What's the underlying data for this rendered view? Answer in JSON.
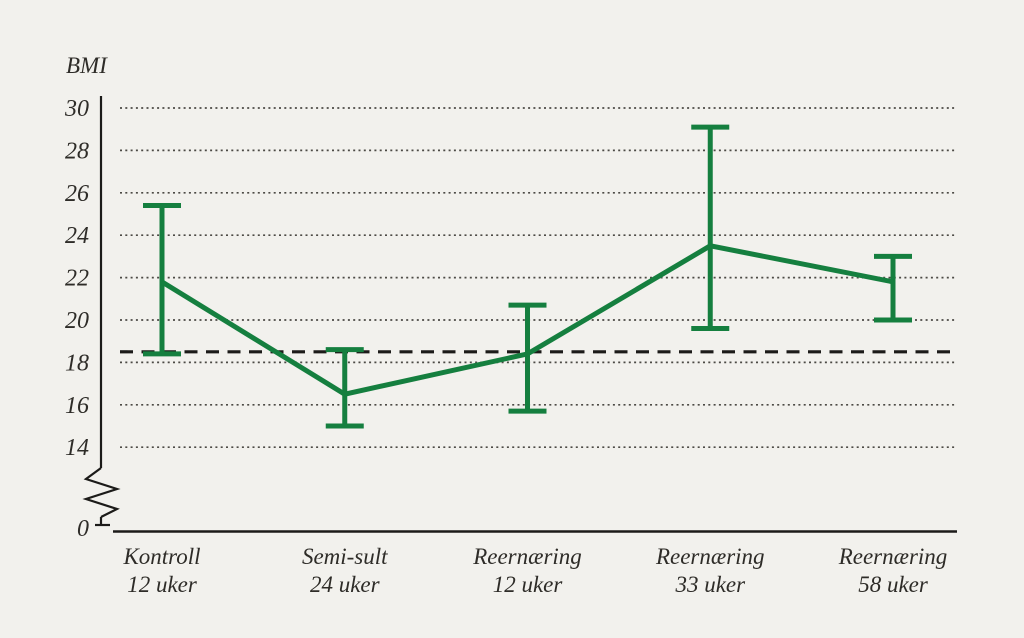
{
  "figure": {
    "background": "#f2f1ed"
  },
  "chart_data": {
    "type": "line",
    "title": "",
    "ylabel": "BMI",
    "xlabel": "",
    "categories": [
      {
        "label": "Kontroll",
        "sublabel": "12 uker"
      },
      {
        "label": "Semi-sult",
        "sublabel": "24 uker"
      },
      {
        "label": "Reernæring",
        "sublabel": "12 uker"
      },
      {
        "label": "Reernæring",
        "sublabel": "33 uker"
      },
      {
        "label": "Reernæring",
        "sublabel": "58 uker"
      }
    ],
    "series": [
      {
        "type": "line-with-error-bars",
        "means": [
          21.8,
          16.5,
          18.4,
          23.5,
          21.8
        ],
        "error_low": [
          18.4,
          15.0,
          15.7,
          19.6,
          20.0
        ],
        "error_high": [
          25.4,
          18.6,
          20.7,
          29.1,
          23.0
        ],
        "color": "#157f3f"
      }
    ],
    "reference_line": {
      "value": 18.5,
      "style": "dashed",
      "color": "#1c1b19"
    },
    "y_ticks": [
      30,
      28,
      26,
      24,
      22,
      20,
      18,
      16,
      14
    ],
    "y_axis_break": true,
    "y_origin_tick": "0",
    "ylim_display": [
      14,
      30
    ],
    "grid": "horizontal-dotted",
    "legend": "none"
  },
  "colors": {
    "background": "#f2f1ed",
    "series": "#157f3f",
    "text": "#2e2c28",
    "grid": "#4c4a45",
    "axis": "#1c1b19"
  }
}
